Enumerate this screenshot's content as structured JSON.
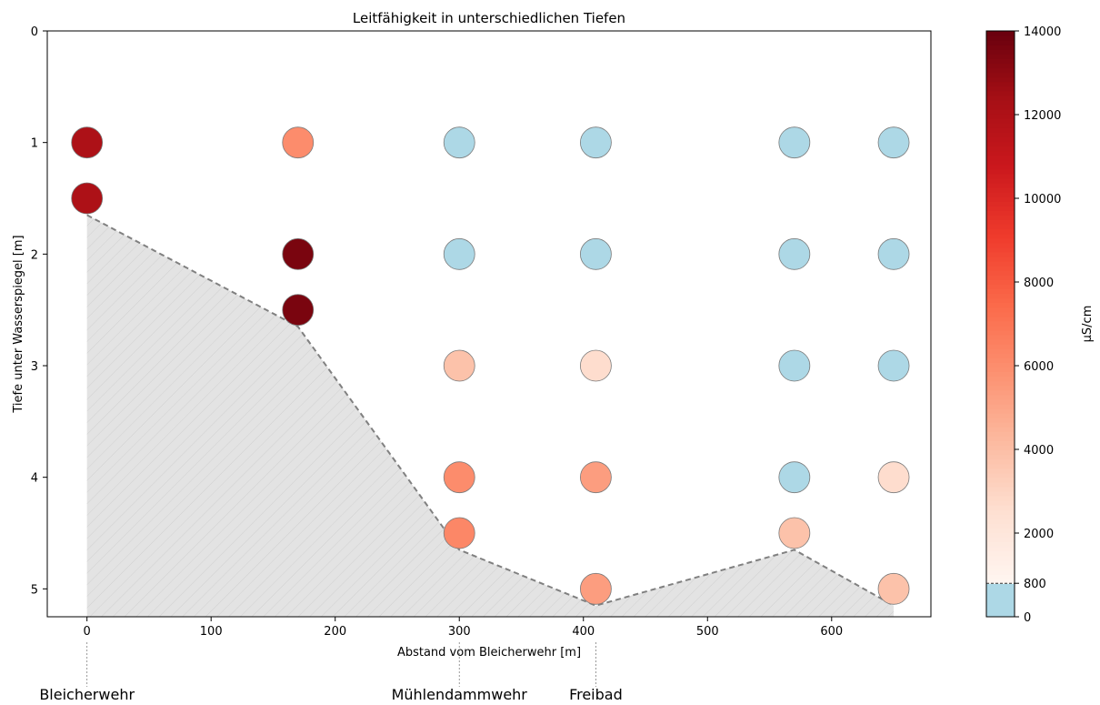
{
  "chart_data": {
    "type": "scatter",
    "title": "Leitfähigkeit in unterschiedlichen Tiefen",
    "xlabel": "Abstand vom Bleicherwehr [m]",
    "ylabel": "Tiefe unter Wasserspiegel [m]",
    "xlim": [
      -32,
      680
    ],
    "ylim": [
      5.25,
      0
    ],
    "xticks": [
      0,
      100,
      200,
      300,
      400,
      500,
      600
    ],
    "yticks": [
      0,
      1,
      2,
      3,
      4,
      5
    ],
    "grid": false,
    "points": [
      {
        "x": 0,
        "y": 1.0,
        "value": 12000
      },
      {
        "x": 0,
        "y": 1.5,
        "value": 12000
      },
      {
        "x": 170,
        "y": 1.0,
        "value": 6000
      },
      {
        "x": 170,
        "y": 2.0,
        "value": 13500
      },
      {
        "x": 170,
        "y": 2.5,
        "value": 13500
      },
      {
        "x": 300,
        "y": 1.0,
        "value": 0
      },
      {
        "x": 300,
        "y": 2.0,
        "value": 0
      },
      {
        "x": 300,
        "y": 3.0,
        "value": 3800
      },
      {
        "x": 300,
        "y": 4.0,
        "value": 6000
      },
      {
        "x": 300,
        "y": 4.5,
        "value": 6200
      },
      {
        "x": 410,
        "y": 1.0,
        "value": 0
      },
      {
        "x": 410,
        "y": 2.0,
        "value": 0
      },
      {
        "x": 410,
        "y": 3.0,
        "value": 2600
      },
      {
        "x": 410,
        "y": 4.0,
        "value": 5300
      },
      {
        "x": 410,
        "y": 5.0,
        "value": 5300
      },
      {
        "x": 570,
        "y": 1.0,
        "value": 0
      },
      {
        "x": 570,
        "y": 2.0,
        "value": 0
      },
      {
        "x": 570,
        "y": 3.0,
        "value": 0
      },
      {
        "x": 570,
        "y": 4.0,
        "value": 0
      },
      {
        "x": 570,
        "y": 4.5,
        "value": 3800
      },
      {
        "x": 650,
        "y": 1.0,
        "value": 0
      },
      {
        "x": 650,
        "y": 2.0,
        "value": 0
      },
      {
        "x": 650,
        "y": 3.0,
        "value": 0
      },
      {
        "x": 650,
        "y": 4.0,
        "value": 2600
      },
      {
        "x": 650,
        "y": 5.0,
        "value": 3800
      }
    ],
    "riverbed": [
      {
        "x": 0,
        "y": 1.65
      },
      {
        "x": 170,
        "y": 2.65
      },
      {
        "x": 300,
        "y": 4.65
      },
      {
        "x": 410,
        "y": 5.15
      },
      {
        "x": 570,
        "y": 4.65
      },
      {
        "x": 650,
        "y": 5.15
      }
    ],
    "locations": [
      {
        "x": 0,
        "label": "Bleicherwehr"
      },
      {
        "x": 300,
        "label": "Mühlendammwehr"
      },
      {
        "x": 410,
        "label": "Freibad"
      }
    ],
    "colorbar": {
      "label": "µS/cm",
      "min": 0,
      "max": 14000,
      "threshold": 800,
      "ticks": [
        0,
        800,
        2000,
        4000,
        6000,
        8000,
        10000,
        12000,
        14000
      ],
      "below_threshold_color": "#add8e6",
      "reds_stops": [
        "#fff5f0",
        "#fee0d2",
        "#fcbba1",
        "#fc9272",
        "#fb6a4a",
        "#ef3b2c",
        "#cb181d",
        "#a50f15",
        "#67000d"
      ]
    }
  }
}
